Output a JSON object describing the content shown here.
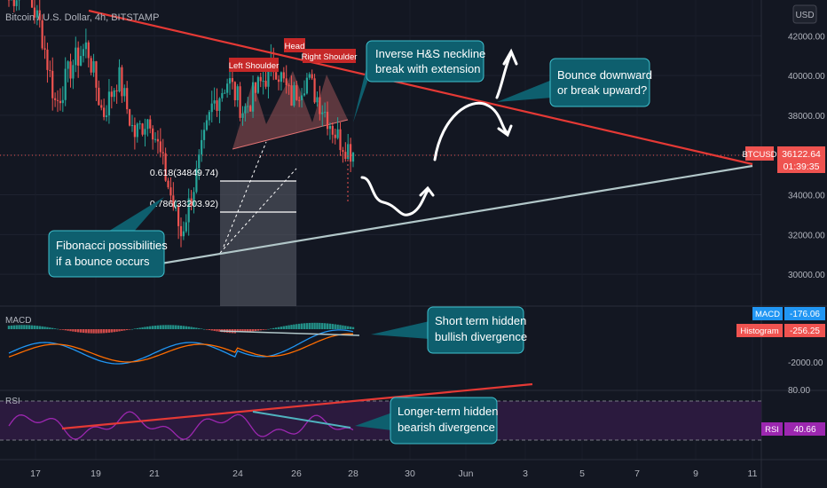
{
  "header": {
    "symbol_title": "Bitcoin / U.S. Dollar, 4h, BITSTAMP",
    "currency": "USD"
  },
  "colors": {
    "background": "#131722",
    "up": "#26a69a",
    "down": "#ef5350",
    "trend_red": "#e53935",
    "support": "#b2c7c9",
    "callout": "#0e5f6e",
    "callout_border": "#3fc1cf",
    "label_red": "#c62828",
    "rsi_line": "#9c27b0",
    "rsi_band": "#2b1a3e",
    "macd_line": "#2196f3",
    "signal_line": "#ff6d00",
    "axis_text": "#b2b5be"
  },
  "chart_data": [
    {
      "type": "candlestick",
      "title": "Bitcoin / U.S. Dollar, 4h, BITSTAMP",
      "y_axis_ticks": [
        30000,
        32000,
        34000,
        36000,
        38000,
        40000,
        42000
      ],
      "y_tick_labels": [
        "30000.00",
        "32000.00",
        "34000.00",
        "36000.00",
        "38000.00",
        "40000.00",
        "42000.00"
      ],
      "ylim": [
        28400,
        43800
      ],
      "x_tick_labels": [
        "17",
        "19",
        "21",
        "24",
        "26",
        "28",
        "30",
        "Jun",
        "3",
        "5",
        "7",
        "9",
        "11"
      ],
      "last_price": {
        "symbol": "BTCUSD",
        "value": "36122.64",
        "countdown": "01:39:35"
      },
      "anchor_closes": [
        {
          "x": "May 17 00:00",
          "y": 43800
        },
        {
          "x": "May 17 16:00",
          "y": 44500
        },
        {
          "x": "May 18 16:00",
          "y": 42500
        },
        {
          "x": "May 19 08:00",
          "y": 38500
        },
        {
          "x": "May 19 16:00",
          "y": 40500
        },
        {
          "x": "May 20 08:00",
          "y": 41500
        },
        {
          "x": "May 20 20:00",
          "y": 38000
        },
        {
          "x": "May 21 08:00",
          "y": 40000
        },
        {
          "x": "May 21 20:00",
          "y": 37000
        },
        {
          "x": "May 22 08:00",
          "y": 38000
        },
        {
          "x": "May 23 00:00",
          "y": 35000
        },
        {
          "x": "May 23 08:00",
          "y": 32000
        },
        {
          "x": "May 23 16:00",
          "y": 35000
        },
        {
          "x": "May 24 08:00",
          "y": 38500
        },
        {
          "x": "May 24 20:00",
          "y": 39800
        },
        {
          "x": "May 25 04:00",
          "y": 38200
        },
        {
          "x": "May 25 16:00",
          "y": 39500
        },
        {
          "x": "May 26 00:00",
          "y": 40600
        },
        {
          "x": "May 26 12:00",
          "y": 38800
        },
        {
          "x": "May 27 00:00",
          "y": 39900
        },
        {
          "x": "May 27 12:00",
          "y": 38500
        },
        {
          "x": "May 28 00:00",
          "y": 36900
        },
        {
          "x": "May 28 08:00",
          "y": 36122.64
        }
      ],
      "fibonacci": [
        {
          "label": "0.618(34849.74)",
          "value": 34849.74
        },
        {
          "label": "0.786(33203.92)",
          "value": 33203.92
        }
      ],
      "lines": [
        {
          "name": "descending resistance",
          "from": {
            "x": "May 18 08:00",
            "y": 43900
          },
          "to": {
            "x": "Jun 11",
            "y": 35150
          }
        },
        {
          "name": "ascending support",
          "from": {
            "x": "May 19 12:00",
            "y": 30000
          },
          "to": {
            "x": "Jun 11",
            "y": 34800
          }
        },
        {
          "name": "neckline",
          "from": {
            "x": "May 23 16:00",
            "y": 35500
          },
          "to": {
            "x": "May 28 00:00",
            "y": 37500
          }
        }
      ],
      "pattern_labels": [
        "Left Shoulder",
        "Head",
        "Right Shoulder"
      ],
      "annotations": [
        "Inverse H&S neckline break with extension",
        "Bounce downward or break upward?",
        "Fibonacci possibilities if a bounce occurs"
      ]
    },
    {
      "type": "macd",
      "label": "MACD",
      "values": {
        "MACD": "-176.06",
        "Histogram": "-256.25"
      },
      "y_tick_labels": [
        "-2000.00"
      ],
      "annotation": "Short term hidden bullish divergence"
    },
    {
      "type": "rsi",
      "label": "RSI",
      "value": "40.66",
      "y_tick_labels": [
        "80.00"
      ],
      "annotation": "Longer-term hidden bearish divergence"
    }
  ],
  "annotations": {
    "hs": {
      "l1": "Inverse H&S neckline",
      "l2": "break with extension"
    },
    "bounce": {
      "l1": "Bounce downward",
      "l2": "or break upward?"
    },
    "fib": {
      "l1": "Fibonacci possibilities",
      "l2": "if a bounce occurs"
    },
    "macd": {
      "l1": "Short term hidden",
      "l2": "bullish divergence"
    },
    "rsi": {
      "l1": "Longer-term hidden",
      "l2": "bearish divergence"
    }
  }
}
